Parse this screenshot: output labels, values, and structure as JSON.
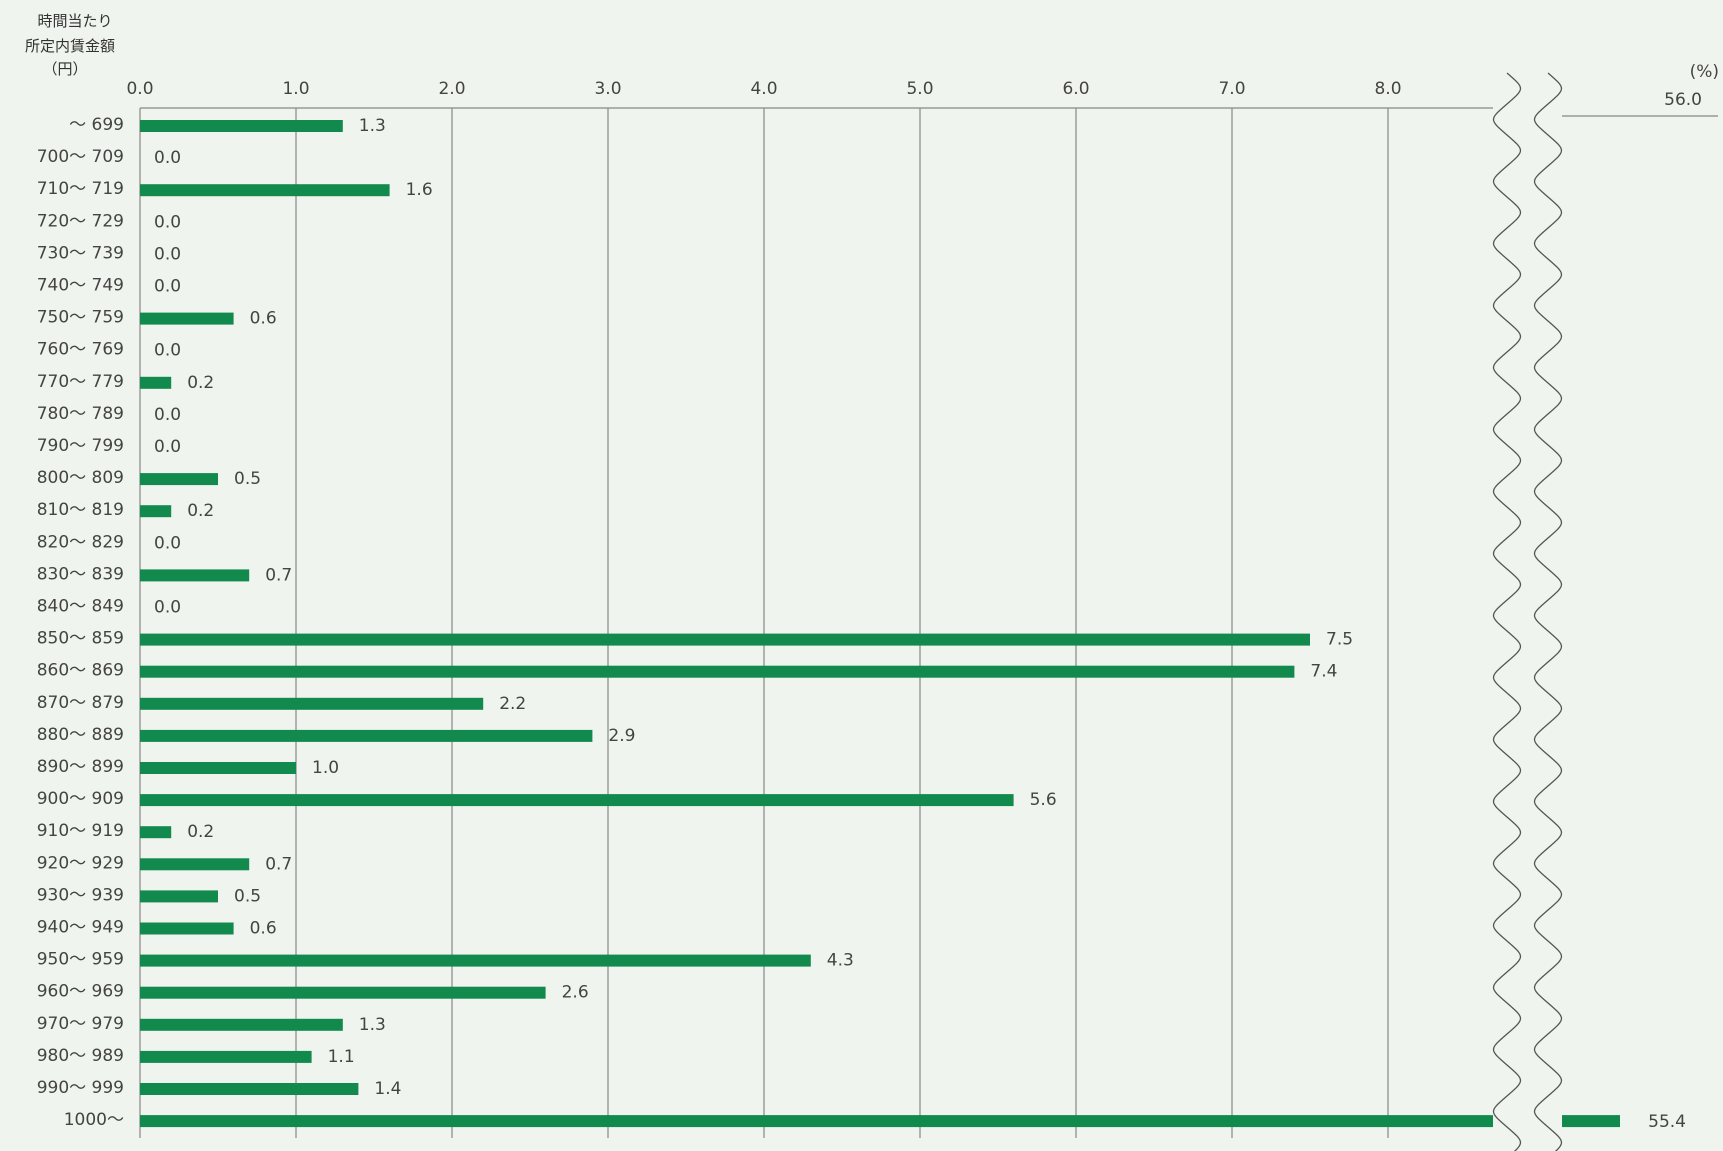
{
  "chart_data": {
    "type": "bar",
    "orientation": "horizontal",
    "ylabel": [
      "時間当たり",
      "所定内賃金額",
      "（円）"
    ],
    "unit": "(%)",
    "xlim": [
      0,
      8.7
    ],
    "x_ticks": [
      "0.0",
      "1.0",
      "2.0",
      "3.0",
      "4.0",
      "5.0",
      "6.0",
      "7.0",
      "8.0"
    ],
    "axis_break": true,
    "break_segment_labels": [
      "56.0"
    ],
    "categories": [
      "～ 699",
      "700～ 709",
      "710～ 719",
      "720～ 729",
      "730～ 739",
      "740～ 749",
      "750～ 759",
      "760～ 769",
      "770～ 779",
      "780～ 789",
      "790～ 799",
      "800～ 809",
      "810～ 819",
      "820～ 829",
      "830～ 839",
      "840～ 849",
      "850～ 859",
      "860～ 869",
      "870～ 879",
      "880～ 889",
      "890～ 899",
      "900～ 909",
      "910～ 919",
      "920～ 929",
      "930～ 939",
      "940～ 949",
      "950～ 959",
      "960～ 969",
      "970～ 979",
      "980～ 989",
      "990～ 999",
      "1000～"
    ],
    "values": [
      1.3,
      0.0,
      1.6,
      0.0,
      0.0,
      0.0,
      0.6,
      0.0,
      0.2,
      0.0,
      0.0,
      0.5,
      0.2,
      0.0,
      0.7,
      0.0,
      7.5,
      7.4,
      2.2,
      2.9,
      1.0,
      5.6,
      0.2,
      0.7,
      0.5,
      0.6,
      4.3,
      2.6,
      1.3,
      1.1,
      1.4,
      55.4
    ],
    "value_labels": [
      "1.3",
      "0.0",
      "1.6",
      "0.0",
      "0.0",
      "0.0",
      "0.6",
      "0.0",
      "0.2",
      "0.0",
      "0.0",
      "0.5",
      "0.2",
      "0.0",
      "0.7",
      "0.0",
      "7.5",
      "7.4",
      "2.2",
      "2.9",
      "1.0",
      "5.6",
      "0.2",
      "0.7",
      "0.5",
      "0.6",
      "4.3",
      "2.6",
      "1.3",
      "1.1",
      "1.4",
      "55.4"
    ],
    "grid": true,
    "bar_color": "#128a4e"
  }
}
